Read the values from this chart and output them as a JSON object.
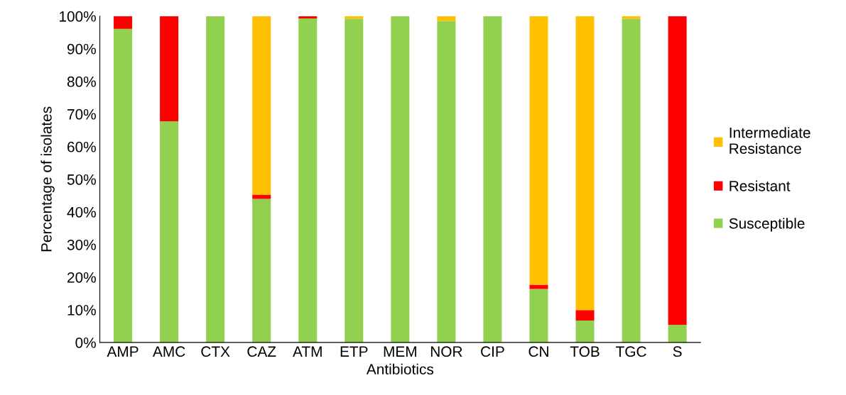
{
  "chart_data": {
    "type": "bar",
    "stacked": true,
    "xlabel": "Antibiotics",
    "ylabel": "Percentage of isolates",
    "categories": [
      "AMP",
      "AMC",
      "CTX",
      "CAZ",
      "ATM",
      "ETP",
      "MEM",
      "NOR",
      "CIP",
      "CN",
      "TOB",
      "TGC",
      "S"
    ],
    "series": [
      {
        "name": "Susceptible",
        "color": "#92d050",
        "values": [
          96.1,
          67.8,
          100,
          44.0,
          99.3,
          99.2,
          100,
          98.5,
          100,
          16.4,
          6.7,
          99.2,
          5.4
        ]
      },
      {
        "name": "Resistant",
        "color": "#ff0000",
        "values": [
          3.9,
          32.2,
          0,
          1.3,
          0.7,
          0,
          0,
          0,
          0,
          1.3,
          3.2,
          0,
          94.6
        ]
      },
      {
        "name": "Intermediate Resistance",
        "color": "#ffc000",
        "values": [
          0,
          0,
          0,
          54.7,
          0,
          0.8,
          0,
          1.5,
          0,
          82.3,
          90.1,
          0.8,
          0
        ]
      }
    ],
    "ylim": [
      0,
      100
    ],
    "yticks": [
      {
        "value": 0,
        "label": "0%"
      },
      {
        "value": 10,
        "label": "10%"
      },
      {
        "value": 20,
        "label": "20%"
      },
      {
        "value": 30,
        "label": "30%"
      },
      {
        "value": 40,
        "label": "40%"
      },
      {
        "value": 50,
        "label": "50%"
      },
      {
        "value": 60,
        "label": "60%"
      },
      {
        "value": 70,
        "label": "70%"
      },
      {
        "value": 80,
        "label": "80%"
      },
      {
        "value": 90,
        "label": "90%"
      },
      {
        "value": 100,
        "label": "100%"
      }
    ],
    "legend": "right"
  }
}
